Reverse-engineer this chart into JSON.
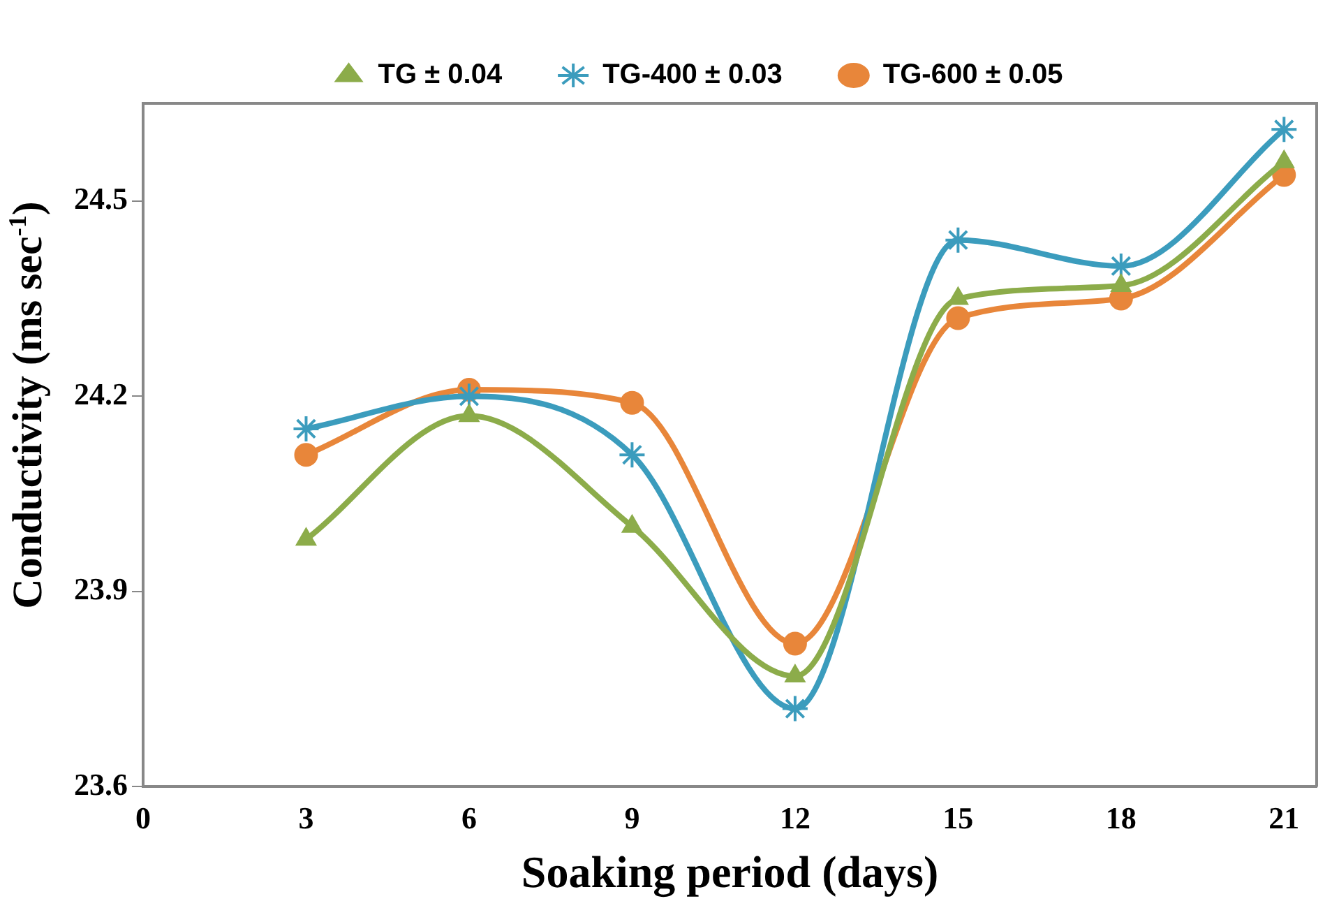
{
  "chart_data": {
    "type": "line",
    "xlabel": "Soaking period (days)",
    "ylabel": "Conductivity (ms  sec$^{-1}$)",
    "x": [
      3,
      6,
      9,
      12,
      15,
      18,
      21
    ],
    "series": [
      {
        "name": "TG ± 0.04",
        "color": "#8cac4a",
        "marker": "triangle",
        "values": [
          23.98,
          24.17,
          24.0,
          23.77,
          24.35,
          24.37,
          24.56
        ]
      },
      {
        "name": "TG-400 ± 0.03",
        "color": "#3b9cbd",
        "marker": "cross",
        "values": [
          24.15,
          24.2,
          24.11,
          23.72,
          24.44,
          24.4,
          24.61
        ]
      },
      {
        "name": "TG-600 ± 0.05",
        "color": "#e8863a",
        "marker": "circle",
        "values": [
          24.11,
          24.21,
          24.19,
          23.82,
          24.32,
          24.35,
          24.54
        ]
      }
    ],
    "xlim": [
      0,
      21.6
    ],
    "xticks": [
      0,
      3,
      6,
      9,
      12,
      15,
      18,
      21
    ],
    "ylim": [
      23.6,
      24.65
    ],
    "yticks": [
      23.6,
      23.9,
      24.2,
      24.5
    ],
    "grid": false,
    "legend": "top"
  }
}
